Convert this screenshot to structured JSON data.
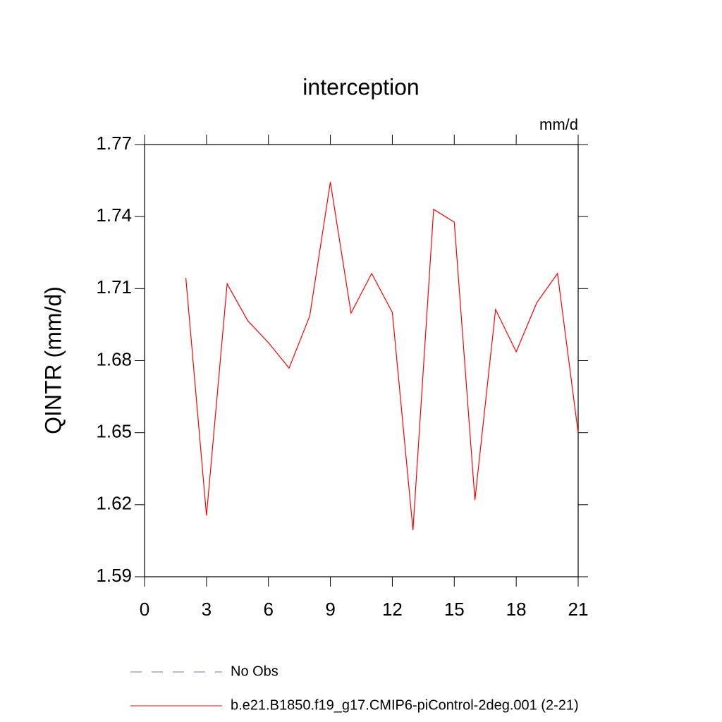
{
  "chart_data": {
    "type": "line",
    "title": "interception",
    "units": "mm/d",
    "ylabel": "QINTR  (mm/d)",
    "x": [
      2,
      3,
      4,
      5,
      6,
      7,
      8,
      9,
      10,
      11,
      12,
      13,
      14,
      15,
      16,
      17,
      18,
      19,
      20,
      21
    ],
    "series": [
      {
        "name": "b.e21.B1850.f19_g17.CMIP6-piControl-2deg.001 (2-21)",
        "color": "#ff0000",
        "values": [
          1.7145,
          1.6155,
          1.712,
          1.6966,
          1.6875,
          1.6769,
          1.6986,
          1.7544,
          1.6998,
          1.7163,
          1.7001,
          1.6094,
          1.743,
          1.7377,
          1.622,
          1.7013,
          1.6837,
          1.7042,
          1.7163,
          1.6499
        ]
      }
    ],
    "legend_entries": [
      {
        "label": "No Obs",
        "color": "#7070cc",
        "style": "dashed"
      }
    ],
    "xlim": [
      0,
      21
    ],
    "xticks": [
      0,
      3,
      6,
      9,
      12,
      15,
      18,
      21
    ],
    "ylim": [
      1.59,
      1.77
    ],
    "yticks": [
      1.59,
      1.62,
      1.65,
      1.68,
      1.71,
      1.74,
      1.77
    ],
    "grid": false
  }
}
